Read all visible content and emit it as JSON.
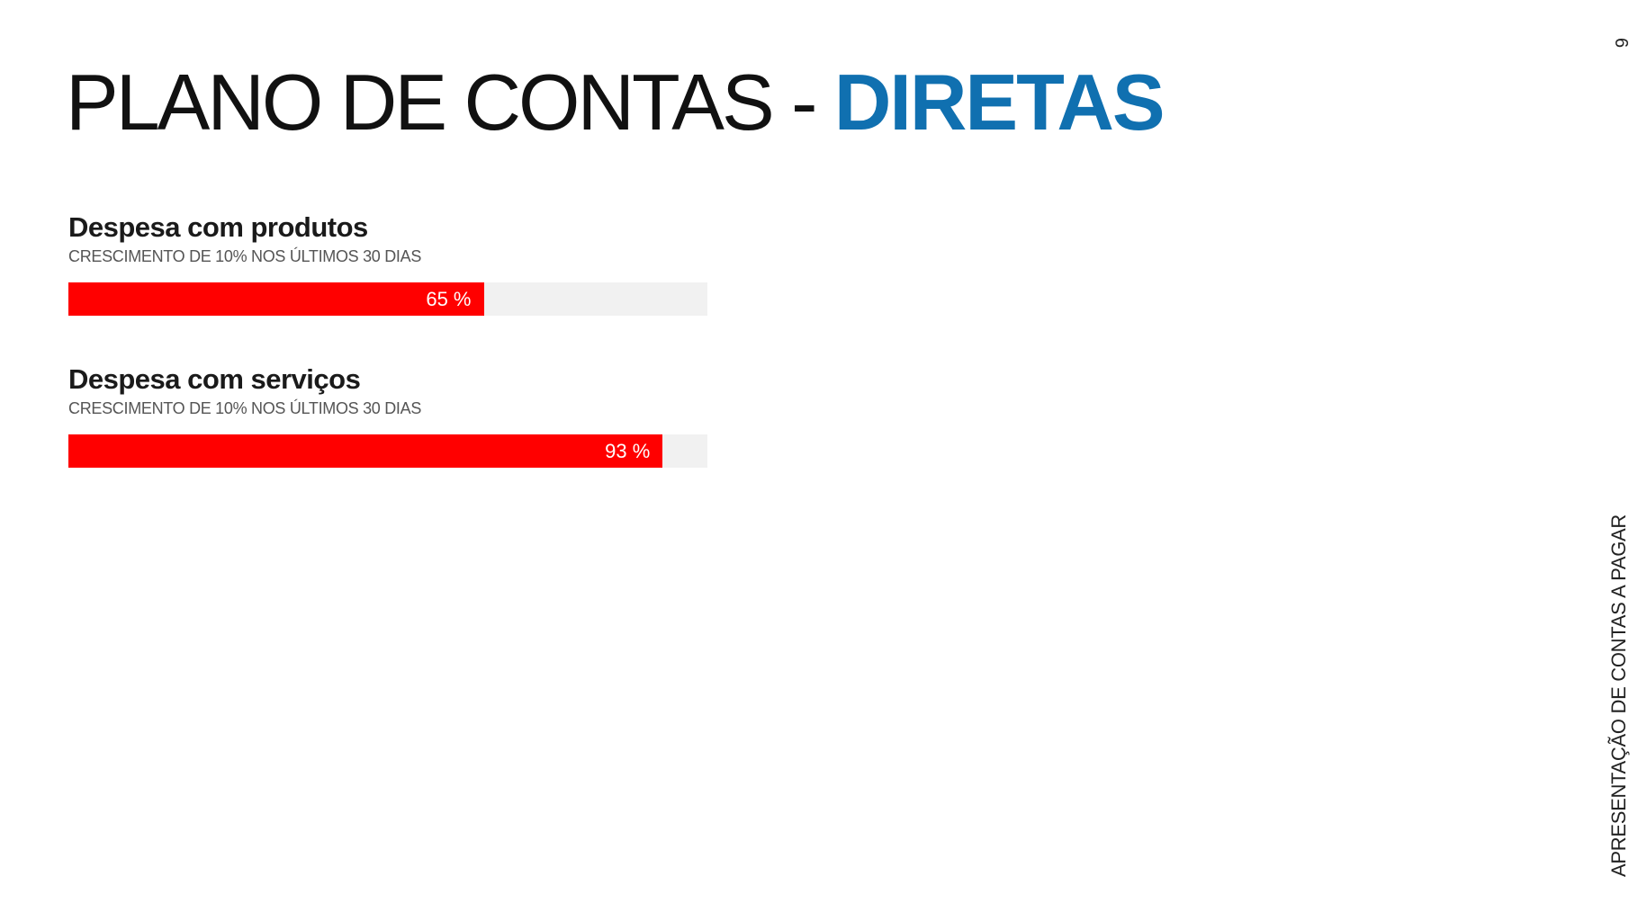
{
  "title": {
    "main": "PLANO DE CONTAS - ",
    "accent": "DIRETAS",
    "accent_color": "#1070b0"
  },
  "items": [
    {
      "heading": "Despesa com produtos",
      "subtitle": "CRESCIMENTO DE 10% NOS ÚLTIMOS 30 DIAS",
      "percent": 65,
      "label": "65 %"
    },
    {
      "heading": "Despesa com serviços",
      "subtitle": "CRESCIMENTO DE 10% NOS ÚLTIMOS 30 DIAS",
      "percent": 93,
      "label": "93 %"
    }
  ],
  "bar_color": "#ff0000",
  "side_title": "APRESENTAÇÃO DE CONTAS A PAGAR",
  "page_number": "6"
}
